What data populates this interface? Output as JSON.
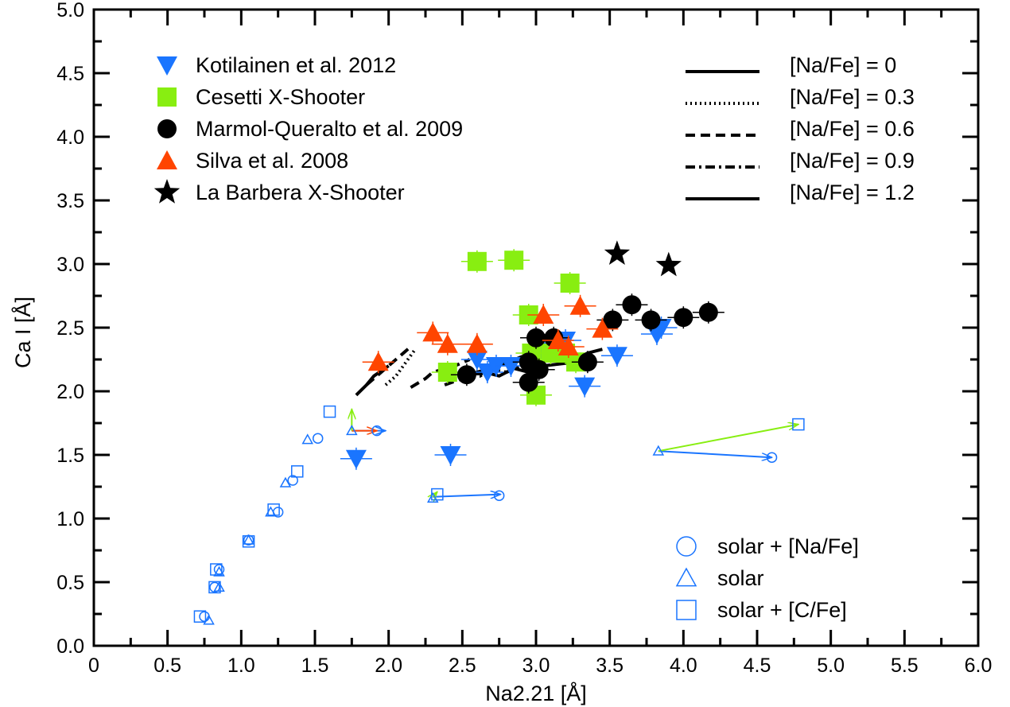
{
  "chart_data": {
    "type": "scatter",
    "xlabel": "Na2.21 [Å]",
    "ylabel": "Ca I [Å]",
    "xlim": [
      0,
      6.0
    ],
    "ylim": [
      0,
      5.0
    ],
    "xticks": [
      "0",
      "0.5",
      "1.0",
      "1.5",
      "2.0",
      "2.5",
      "3.0",
      "3.5",
      "4.0",
      "4.5",
      "5.0",
      "5.5",
      "6.0"
    ],
    "yticks": [
      "0.0",
      "0.5",
      "1.0",
      "1.5",
      "2.0",
      "2.5",
      "3.0",
      "3.5",
      "4.0",
      "4.5",
      "5.0"
    ],
    "grid": false,
    "series": [
      {
        "name": "Kotilainen et al. 2012",
        "marker": "triangle-down",
        "color": "#1a75ff",
        "points": [
          [
            1.78,
            1.47
          ],
          [
            2.42,
            1.5
          ],
          [
            2.6,
            2.25
          ],
          [
            2.67,
            2.15
          ],
          [
            2.73,
            2.2
          ],
          [
            2.83,
            2.2
          ],
          [
            3.05,
            2.3
          ],
          [
            3.12,
            2.38
          ],
          [
            3.2,
            2.4
          ],
          [
            3.33,
            2.04
          ],
          [
            3.55,
            2.28
          ],
          [
            3.82,
            2.45
          ],
          [
            3.85,
            2.5
          ]
        ]
      },
      {
        "name": "Cesetti X-Shooter",
        "marker": "square",
        "color": "#88ee11",
        "points": [
          [
            2.6,
            3.02
          ],
          [
            2.85,
            3.03
          ],
          [
            2.95,
            2.6
          ],
          [
            2.97,
            2.3
          ],
          [
            3.0,
            1.97
          ],
          [
            3.1,
            2.3
          ],
          [
            3.2,
            2.3
          ],
          [
            3.23,
            2.85
          ],
          [
            3.27,
            2.23
          ],
          [
            2.4,
            2.15
          ]
        ]
      },
      {
        "name": "Marmol-Queralto et al. 2009",
        "marker": "circle",
        "color": "#000000",
        "points": [
          [
            2.53,
            2.13
          ],
          [
            2.95,
            2.07
          ],
          [
            2.95,
            2.23
          ],
          [
            3.0,
            2.42
          ],
          [
            3.02,
            2.17
          ],
          [
            3.12,
            2.42
          ],
          [
            3.35,
            2.23
          ],
          [
            3.52,
            2.56
          ],
          [
            3.65,
            2.68
          ],
          [
            3.78,
            2.56
          ],
          [
            4.0,
            2.58
          ],
          [
            4.17,
            2.62
          ]
        ]
      },
      {
        "name": "Silva et al. 2008",
        "marker": "triangle-up",
        "color": "#ff4500",
        "points": [
          [
            1.93,
            2.23
          ],
          [
            2.3,
            2.46
          ],
          [
            2.4,
            2.37
          ],
          [
            2.6,
            2.37
          ],
          [
            3.05,
            2.6
          ],
          [
            3.3,
            2.67
          ],
          [
            3.45,
            2.49
          ],
          [
            3.15,
            2.4
          ],
          [
            3.22,
            2.35
          ]
        ]
      },
      {
        "name": "La Barbera X-Shooter",
        "marker": "star",
        "color": "#000000",
        "points": [
          [
            3.55,
            3.08
          ],
          [
            3.9,
            2.99
          ]
        ]
      }
    ],
    "legend_lines": [
      {
        "label": "[Na/Fe] = 0",
        "style": "solid"
      },
      {
        "label": "[Na/Fe] = 0.3",
        "style": "dotted"
      },
      {
        "label": "[Na/Fe] = 0.6",
        "style": "dashed"
      },
      {
        "label": "[Na/Fe] = 0.9",
        "style": "dashdot"
      },
      {
        "label": "[Na/Fe] = 1.2",
        "style": "solid"
      }
    ],
    "model_lines": [
      {
        "style": "solid",
        "points": [
          [
            1.78,
            1.97
          ],
          [
            1.85,
            2.05
          ],
          [
            1.9,
            2.12
          ],
          [
            2.0,
            2.2
          ]
        ]
      },
      {
        "style": "dotted",
        "points": [
          [
            1.98,
            2.05
          ],
          [
            2.05,
            2.12
          ],
          [
            2.1,
            2.2
          ],
          [
            2.18,
            2.33
          ]
        ]
      },
      {
        "style": "dashed",
        "points": [
          [
            1.85,
            2.05
          ],
          [
            1.95,
            2.15
          ],
          [
            2.05,
            2.25
          ],
          [
            2.15,
            2.35
          ]
        ]
      },
      {
        "style": "dashed",
        "points": [
          [
            2.15,
            2.03
          ],
          [
            2.25,
            2.1
          ],
          [
            2.3,
            2.15
          ],
          [
            2.45,
            2.2
          ],
          [
            2.55,
            2.25
          ]
        ]
      },
      {
        "style": "dashed",
        "points": [
          [
            2.38,
            2.05
          ],
          [
            2.5,
            2.1
          ],
          [
            2.6,
            2.15
          ],
          [
            2.75,
            2.2
          ],
          [
            2.9,
            2.27
          ],
          [
            3.05,
            2.33
          ],
          [
            3.15,
            2.36
          ]
        ]
      },
      {
        "style": "dashdot",
        "points": [
          [
            2.4,
            2.08
          ],
          [
            2.5,
            2.13
          ],
          [
            2.62,
            2.12
          ],
          [
            2.7,
            2.17
          ],
          [
            2.8,
            2.15
          ],
          [
            2.9,
            2.2
          ],
          [
            3.0,
            2.22
          ]
        ]
      },
      {
        "style": "solid",
        "points": [
          [
            2.55,
            2.13
          ],
          [
            2.65,
            2.15
          ],
          [
            2.75,
            2.12
          ],
          [
            2.85,
            2.18
          ],
          [
            2.95,
            2.15
          ],
          [
            3.05,
            2.2
          ],
          [
            3.2,
            2.22
          ],
          [
            3.35,
            2.3
          ],
          [
            3.45,
            2.33
          ]
        ]
      }
    ],
    "open_markers": [
      {
        "label": "solar + [Na/Fe]",
        "marker": "circle",
        "color": "#1a75ff",
        "points": [
          [
            1.52,
            1.63
          ],
          [
            1.35,
            1.3
          ],
          [
            1.25,
            1.05
          ],
          [
            1.05,
            0.83
          ],
          [
            0.85,
            0.6
          ],
          [
            0.82,
            0.46
          ],
          [
            0.75,
            0.23
          ],
          [
            1.92,
            1.69
          ],
          [
            2.75,
            1.18
          ],
          [
            4.6,
            1.48
          ]
        ]
      },
      {
        "label": "solar",
        "marker": "triangle",
        "color": "#1a75ff",
        "points": [
          [
            1.45,
            1.62
          ],
          [
            1.3,
            1.28
          ],
          [
            1.2,
            1.05
          ],
          [
            1.05,
            0.83
          ],
          [
            0.85,
            0.58
          ],
          [
            0.85,
            0.46
          ],
          [
            0.78,
            0.2
          ],
          [
            1.75,
            1.69
          ],
          [
            2.3,
            1.16
          ],
          [
            3.83,
            1.53
          ]
        ]
      },
      {
        "label": "solar + [C/Fe]",
        "marker": "square",
        "color": "#1a75ff",
        "points": [
          [
            1.6,
            1.84
          ],
          [
            1.38,
            1.37
          ],
          [
            1.22,
            1.07
          ],
          [
            1.05,
            0.82
          ],
          [
            0.83,
            0.6
          ],
          [
            0.82,
            0.46
          ],
          [
            0.72,
            0.23
          ],
          [
            2.33,
            1.19
          ],
          [
            4.78,
            1.74
          ]
        ]
      }
    ],
    "arrows": [
      {
        "color": "#1a75ff",
        "from": [
          1.75,
          1.69
        ],
        "to": [
          1.98,
          1.69
        ]
      },
      {
        "color": "#ff4500",
        "from": [
          1.75,
          1.69
        ],
        "to": [
          1.92,
          1.69
        ]
      },
      {
        "color": "#88ee11",
        "from": [
          1.75,
          1.69
        ],
        "to": [
          1.75,
          1.86
        ]
      },
      {
        "color": "#1a75ff",
        "from": [
          2.3,
          1.17
        ],
        "to": [
          2.76,
          1.19
        ]
      },
      {
        "color": "#88ee11",
        "from": [
          2.3,
          1.17
        ],
        "to": [
          2.33,
          1.21
        ]
      },
      {
        "color": "#1a75ff",
        "from": [
          3.83,
          1.53
        ],
        "to": [
          4.6,
          1.48
        ]
      },
      {
        "color": "#88ee11",
        "from": [
          3.83,
          1.53
        ],
        "to": [
          4.78,
          1.74
        ]
      }
    ]
  }
}
